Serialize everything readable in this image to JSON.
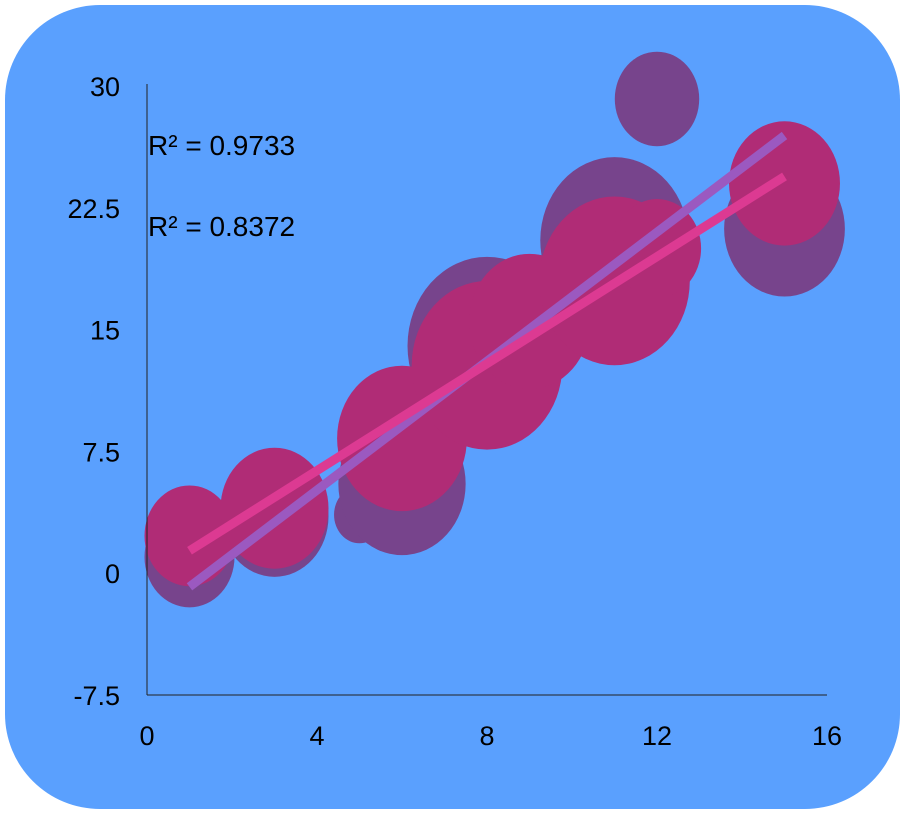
{
  "chart_data": {
    "type": "scatter",
    "subtype": "bubble",
    "title": "",
    "xlabel": "",
    "ylabel": "",
    "xlim": [
      0,
      16
    ],
    "ylim": [
      -7.5,
      30
    ],
    "x_ticks": [
      "0",
      "4",
      "8",
      "12",
      "16"
    ],
    "y_ticks": [
      "30",
      "22.5",
      "15",
      "7.5",
      "0",
      "-7.5"
    ],
    "grid": false,
    "background_color": "#5aa0fe",
    "series": [
      {
        "color": "#77448c",
        "trendline_color": "#9b59c0",
        "r_squared_label": "R² = 0.9733",
        "points": [
          {
            "x": 1,
            "y": 1,
            "size": 25
          },
          {
            "x": 3,
            "y": 3.5,
            "size": 36
          },
          {
            "x": 5,
            "y": 3.6,
            "size": 8
          },
          {
            "x": 6,
            "y": 5.5,
            "size": 50
          },
          {
            "x": 8,
            "y": 14,
            "size": 78
          },
          {
            "x": 11,
            "y": 20.5,
            "size": 68
          },
          {
            "x": 12,
            "y": 29.2,
            "size": 22
          },
          {
            "x": 15,
            "y": 21.2,
            "size": 45
          }
        ]
      },
      {
        "color": "#b02c76",
        "trendline_color": "#dc3a92",
        "r_squared_label": "R² = 0.8372",
        "points": [
          {
            "x": 1,
            "y": 2.3,
            "size": 25
          },
          {
            "x": 3,
            "y": 4,
            "size": 36
          },
          {
            "x": 6,
            "y": 8.3,
            "size": 52
          },
          {
            "x": 8,
            "y": 12.8,
            "size": 70
          },
          {
            "x": 9,
            "y": 15.5,
            "size": 45
          },
          {
            "x": 11,
            "y": 18,
            "size": 70
          },
          {
            "x": 12,
            "y": 20,
            "size": 24
          },
          {
            "x": 15,
            "y": 24,
            "size": 38
          }
        ]
      }
    ]
  }
}
